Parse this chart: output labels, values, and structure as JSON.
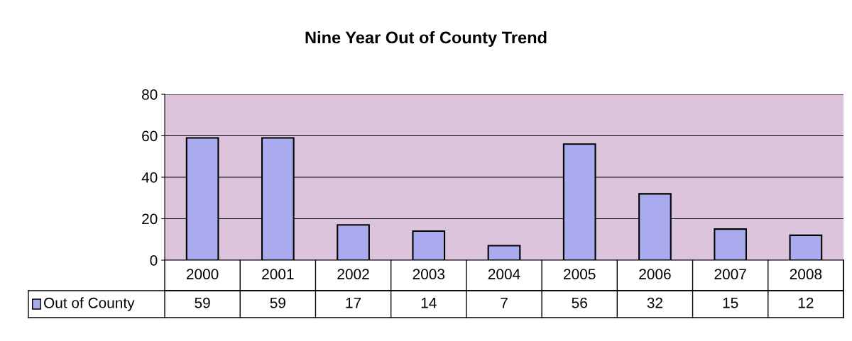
{
  "chart_data": {
    "type": "bar",
    "title": "Nine Year Out of County Trend",
    "categories": [
      "2000",
      "2001",
      "2002",
      "2003",
      "2004",
      "2005",
      "2006",
      "2007",
      "2008"
    ],
    "series": [
      {
        "name": "Out of County",
        "color": "#aaaaee",
        "values": [
          59,
          59,
          17,
          14,
          7,
          56,
          32,
          15,
          12
        ]
      }
    ],
    "ylim": [
      0,
      80
    ],
    "yticks": [
      0,
      20,
      40,
      60,
      80
    ],
    "grid": "y",
    "legend": "bottom left",
    "data_labels": true
  }
}
